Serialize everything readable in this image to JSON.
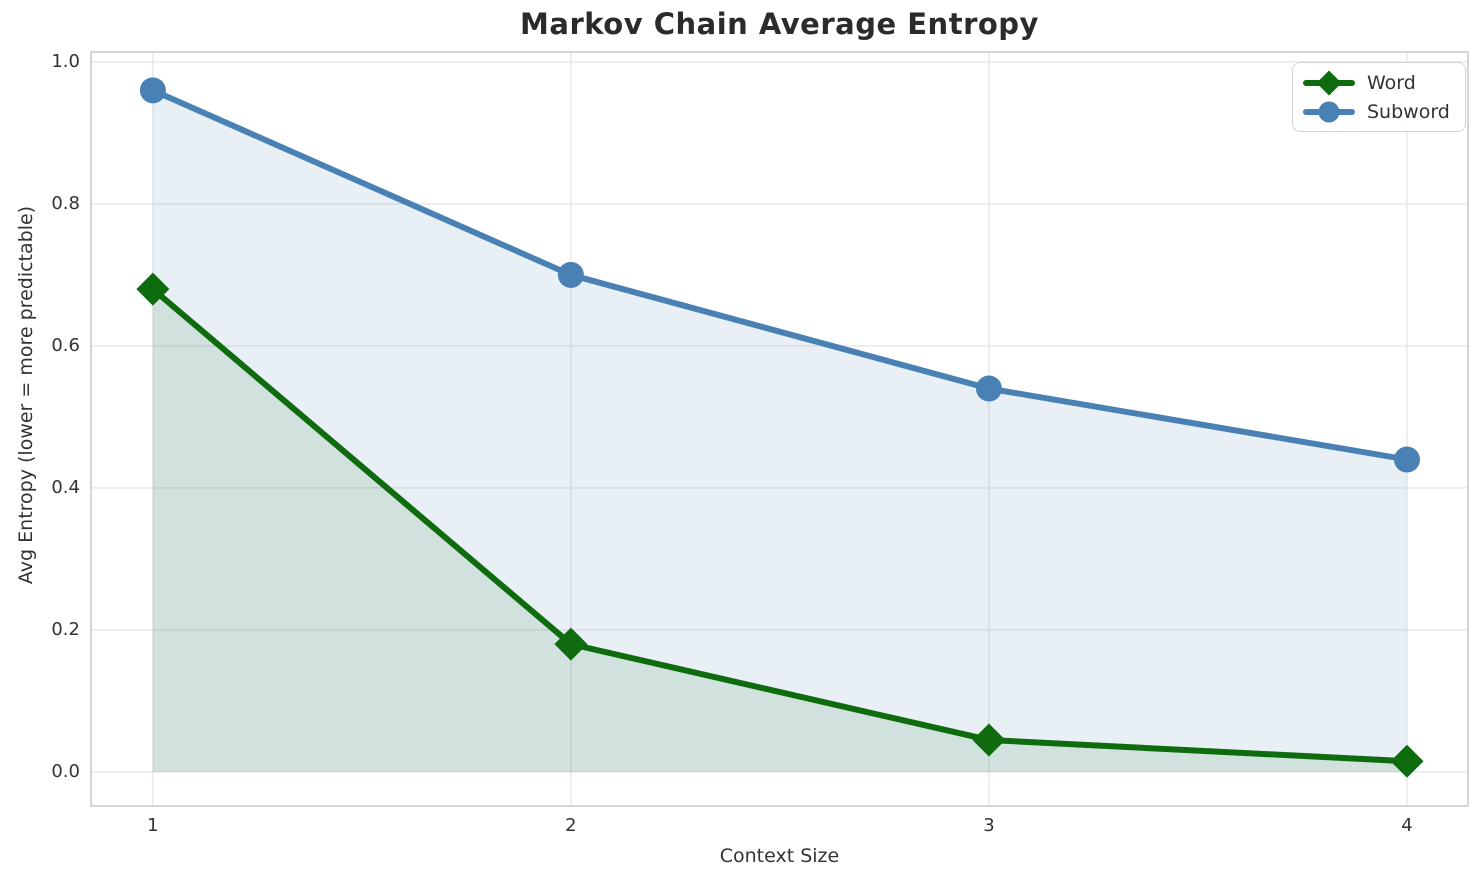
{
  "title": "Markov Chain Average Entropy",
  "chart_data": {
    "type": "line",
    "title": "Markov Chain Average Entropy",
    "xlabel": "Context Size",
    "ylabel": "Avg Entropy (lower = more predictable)",
    "x": [
      1,
      2,
      3,
      4
    ],
    "series": [
      {
        "name": "Word",
        "values": [
          0.68,
          0.18,
          0.045,
          0.015
        ],
        "color": "#0e6c0e",
        "marker": "diamond",
        "fill_to_zero": true,
        "fill_opacity": 0.1
      },
      {
        "name": "Subword",
        "values": [
          0.96,
          0.7,
          0.54,
          0.44
        ],
        "color": "#4a81b5",
        "marker": "circle",
        "fill_to_zero": true,
        "fill_opacity": 0.13
      }
    ],
    "xticks": {
      "values": [
        1,
        2,
        3,
        4
      ],
      "labels": [
        "1",
        "2",
        "3",
        "4"
      ]
    },
    "yticks": {
      "values": [
        0.0,
        0.2,
        0.4,
        0.6,
        0.8,
        1.0
      ],
      "labels": [
        "0.0",
        "0.2",
        "0.4",
        "0.6",
        "0.8",
        "1.0"
      ]
    },
    "xlim": [
      0.852,
      4.146
    ],
    "ylim": [
      -0.048,
      1.014
    ],
    "grid": true,
    "legend_position": "upper right"
  },
  "legend": {
    "items": [
      {
        "label": "Word",
        "icon": "diamond-marker-icon"
      },
      {
        "label": "Subword",
        "icon": "circle-marker-icon"
      }
    ]
  }
}
